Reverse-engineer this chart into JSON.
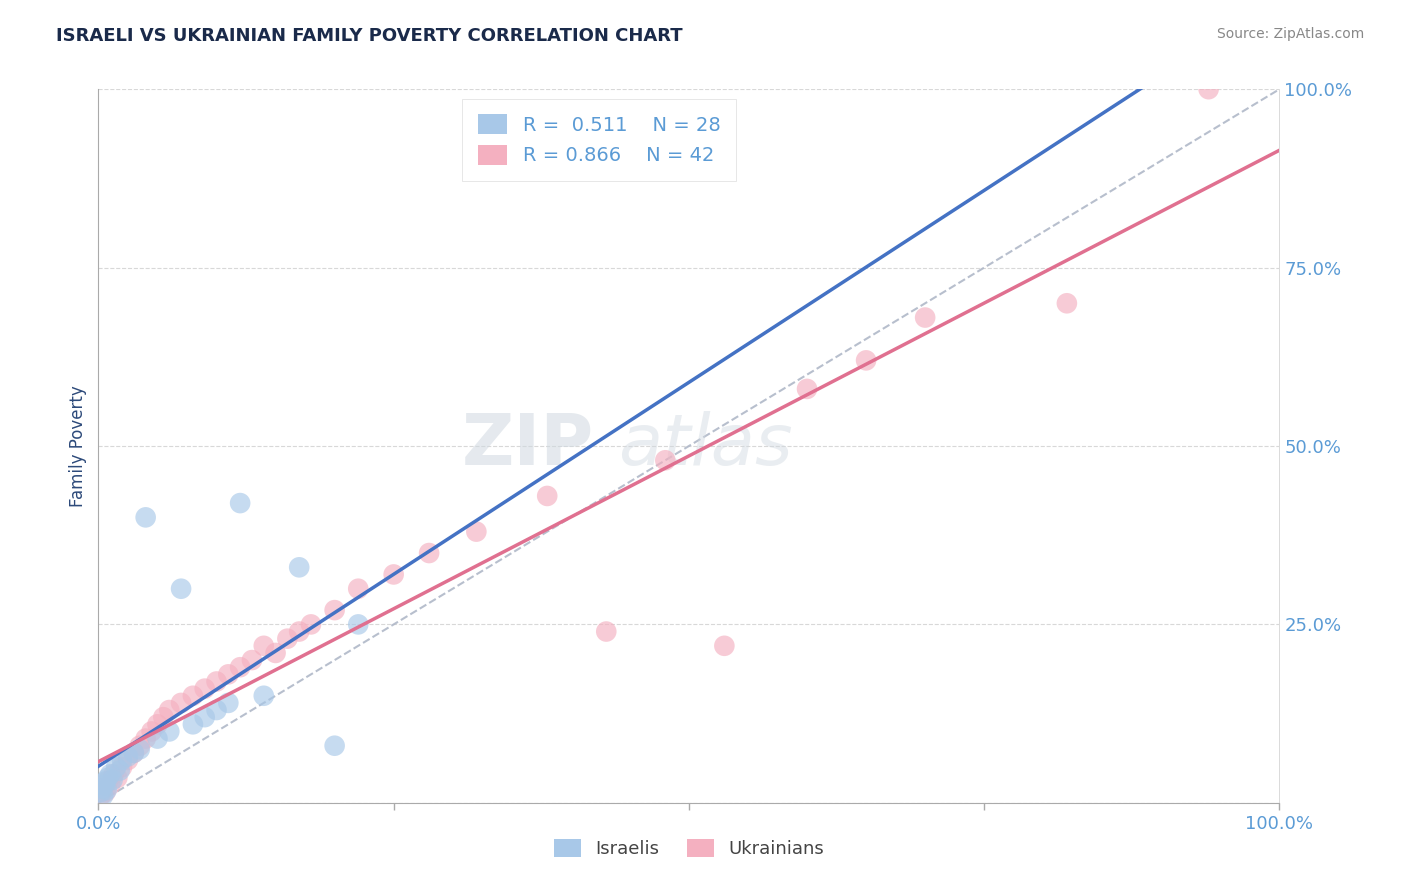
{
  "title": "ISRAELI VS UKRAINIAN FAMILY POVERTY CORRELATION CHART",
  "source": "Source: ZipAtlas.com",
  "ylabel": "Family Poverty",
  "watermark_zip": "ZIP",
  "watermark_atlas": "atlas",
  "tick_color": "#5b9bd5",
  "grid_color": "#c8c8c8",
  "israeli_color": "#a8c8e8",
  "ukrainian_color": "#f4b0c0",
  "israeli_line_color": "#4472c4",
  "ukrainian_line_color": "#e07090",
  "ref_line_color": "#b0b8c8",
  "legend_R_israeli": "0.511",
  "legend_N_israeli": "28",
  "legend_R_ukrainian": "0.866",
  "legend_N_ukrainian": "42",
  "israeli_x": [
    0.2,
    0.3,
    0.4,
    0.5,
    0.6,
    0.7,
    0.8,
    1.0,
    1.2,
    1.5,
    1.8,
    2.0,
    2.5,
    3.0,
    3.5,
    4.0,
    5.0,
    6.0,
    7.0,
    8.0,
    9.0,
    10.0,
    11.0,
    12.0,
    14.0,
    17.0,
    20.0,
    22.0
  ],
  "israeli_y": [
    1.5,
    2.0,
    1.0,
    2.5,
    3.0,
    1.8,
    3.5,
    4.0,
    3.2,
    5.0,
    4.5,
    6.0,
    6.5,
    7.0,
    7.5,
    40.0,
    9.0,
    10.0,
    30.0,
    11.0,
    12.0,
    13.0,
    14.0,
    42.0,
    15.0,
    33.0,
    8.0,
    25.0
  ],
  "ukrainian_x": [
    0.2,
    0.4,
    0.6,
    0.8,
    1.0,
    1.3,
    1.6,
    2.0,
    2.5,
    3.0,
    3.5,
    4.0,
    4.5,
    5.0,
    5.5,
    6.0,
    7.0,
    8.0,
    9.0,
    10.0,
    11.0,
    12.0,
    13.0,
    14.0,
    15.0,
    16.0,
    17.0,
    18.0,
    20.0,
    22.0,
    25.0,
    28.0,
    32.0,
    38.0,
    43.0,
    48.0,
    53.0,
    60.0,
    65.0,
    70.0,
    82.0,
    94.0
  ],
  "ukrainian_y": [
    1.0,
    2.0,
    1.5,
    3.0,
    2.5,
    4.0,
    3.5,
    5.0,
    6.0,
    7.0,
    8.0,
    9.0,
    10.0,
    11.0,
    12.0,
    13.0,
    14.0,
    15.0,
    16.0,
    17.0,
    18.0,
    19.0,
    20.0,
    22.0,
    21.0,
    23.0,
    24.0,
    25.0,
    27.0,
    30.0,
    32.0,
    35.0,
    38.0,
    43.0,
    24.0,
    48.0,
    22.0,
    58.0,
    62.0,
    68.0,
    70.0,
    100.0
  ]
}
